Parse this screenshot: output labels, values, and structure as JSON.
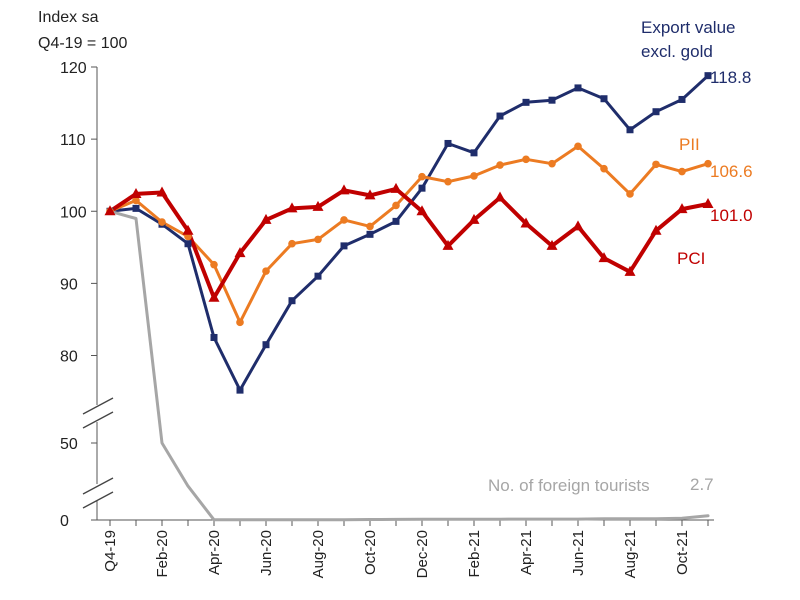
{
  "chart_data": {
    "type": "line",
    "title": "",
    "ylabel_lines": [
      "Index sa",
      "Q4-19 = 100"
    ],
    "y_ticks": [
      0,
      50,
      80,
      90,
      100,
      110,
      120
    ],
    "axis_break": true,
    "ylim_upper": [
      73,
      120
    ],
    "ylim_lower": [
      0,
      50
    ],
    "x": [
      "Q4-19",
      "Jan-20",
      "Feb-20",
      "Mar-20",
      "Apr-20",
      "May-20",
      "Jun-20",
      "Jul-20",
      "Aug-20",
      "Sep-20",
      "Oct-20",
      "Nov-20",
      "Dec-20",
      "Jan-21",
      "Feb-21",
      "Mar-21",
      "Apr-21",
      "May-21",
      "Jun-21",
      "Jul-21",
      "Aug-21",
      "Sep-21",
      "Oct-21",
      "Nov-21"
    ],
    "x_tick_labels": [
      "Q4-19",
      "",
      "Feb-20",
      "",
      "Apr-20",
      "",
      "Jun-20",
      "",
      "Aug-20",
      "",
      "Oct-20",
      "",
      "Dec-20",
      "",
      "Feb-21",
      "",
      "Apr-21",
      "",
      "Jun-21",
      "",
      "Aug-21",
      "",
      "Oct-21",
      ""
    ],
    "grid": false,
    "series": [
      {
        "name": "Export value excl. gold",
        "label_lines": [
          "Export value",
          "excl. gold"
        ],
        "color": "#1f2d6b",
        "marker": "square",
        "end_label": "118.8",
        "values": [
          100,
          100.4,
          98.2,
          95.5,
          82.5,
          75.2,
          81.5,
          87.6,
          91,
          95.2,
          96.8,
          98.6,
          103.2,
          109.4,
          108.1,
          113.2,
          115.1,
          115.4,
          117.1,
          115.6,
          111.3,
          113.8,
          115.5,
          118.8
        ]
      },
      {
        "name": "PII",
        "label_lines": [
          "PII"
        ],
        "color": "#ec7b22",
        "marker": "circle",
        "end_label": "106.6",
        "values": [
          100,
          101.5,
          98.5,
          96.5,
          92.6,
          84.6,
          91.7,
          95.5,
          96.1,
          98.8,
          97.9,
          100.8,
          104.8,
          104.1,
          104.9,
          106.4,
          107.2,
          106.6,
          109,
          105.9,
          102.4,
          106.5,
          105.5,
          106.6
        ]
      },
      {
        "name": "PCI",
        "label_lines": [
          "PCI"
        ],
        "color": "#c00000",
        "marker": "triangle",
        "end_label": "101.0",
        "values": [
          100,
          102.4,
          102.6,
          97.3,
          88,
          94.2,
          98.8,
          100.4,
          100.6,
          102.9,
          102.2,
          103.1,
          100,
          95.2,
          98.8,
          101.9,
          98.3,
          95.2,
          97.9,
          93.5,
          91.6,
          97.3,
          100.3,
          101
        ]
      },
      {
        "name": "No. of foreign tourists",
        "label_lines": [
          "No. of foreign tourists"
        ],
        "color": "#a6a6a6",
        "marker": "none",
        "end_label": "2.7",
        "values": [
          100,
          99,
          50,
          22,
          0.1,
          0.1,
          0.1,
          0.1,
          0.1,
          0.1,
          0.3,
          0.4,
          0.5,
          0.5,
          0.5,
          0.5,
          0.6,
          0.6,
          0.6,
          0.8,
          0.8,
          0.8,
          1.2,
          2.7
        ]
      }
    ]
  }
}
